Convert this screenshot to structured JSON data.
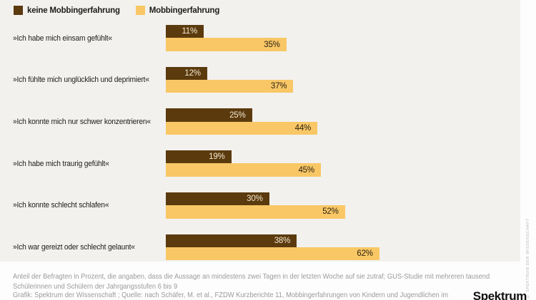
{
  "legend": {
    "items": [
      {
        "label": "keine Mobbingerfahrung"
      },
      {
        "label": "Mobbingerfahrung"
      }
    ]
  },
  "chart_data": {
    "type": "bar",
    "orientation": "horizontal",
    "unit": "%",
    "xlim": [
      0,
      100
    ],
    "grid": false,
    "legend_position": "top-left",
    "value_labels": "inside-right",
    "categories": [
      "»Ich habe mich einsam gefühlt«",
      "»Ich fühlte mich unglücklich und deprimiert«",
      "»Ich konnte mich nur schwer konzentrieren«",
      "»Ich habe mich traurig gefühlt«",
      "»Ich konnte schlecht schlafen«",
      "»Ich war gereizt oder schlecht gelaunt«"
    ],
    "series": [
      {
        "name": "keine Mobbingerfahrung",
        "color": "#5b3a0e",
        "values": [
          11,
          12,
          25,
          19,
          30,
          38
        ]
      },
      {
        "name": "Mobbingerfahrung",
        "color": "#f9c765",
        "values": [
          35,
          37,
          44,
          45,
          52,
          62
        ]
      }
    ]
  },
  "colors": {
    "page_bg": "#fdfdfd",
    "panel_bg": "#f2f1ee",
    "value_on_dark": "#f4ead0",
    "value_on_light": "#2b2214",
    "category_text": "#1d1c1a",
    "legend_text": "#1d1c1a",
    "footnote_text": "#9b9b9b",
    "logo_text": "#111111",
    "watermark_text": "#b9b9b9"
  },
  "footer": {
    "note": "Anteil der Befragten in Prozent, die angaben, dass die Aussage an mindestens zwei Tagen in der letzten Woche auf sie zutraf; GUS-Studie mit mehreren tausend Schülerinnen und Schülern der Jahrgangsstufen 6 bis 9",
    "credit": "Grafik: Spektrum der Wissenschaft ; Quelle: nach Schäfer, M. et al., FZDW Kurzberichte 11, Mobbingerfahrungen von Kindern und Jugendlichen im",
    "logo": "Spektrum",
    "watermark": "© SPEKTRUM DER WISSENSCHAFT"
  }
}
